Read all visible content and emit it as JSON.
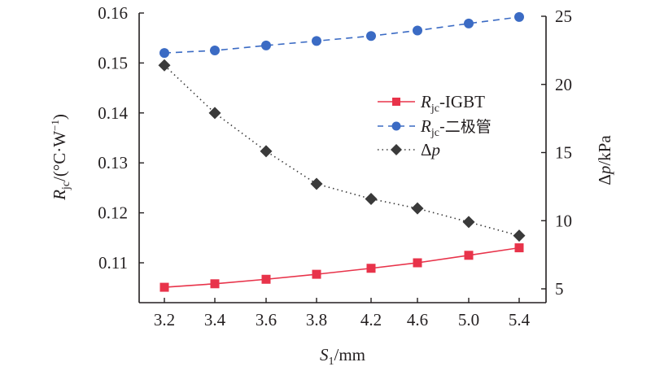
{
  "chart_data": {
    "type": "line",
    "title": "",
    "x_categories": [
      "3.2",
      "3.4",
      "3.6",
      "3.8",
      "4.2",
      "4.6",
      "5.0",
      "5.4"
    ],
    "xlabel": {
      "symbol": "S",
      "subscript": "1",
      "unit": "/mm"
    },
    "ylabel_left": {
      "symbol": "R",
      "subscript": "jc",
      "unit": "/(°C·W",
      "superscript": "−1",
      "close": ")"
    },
    "ylabel_right": {
      "symbol": "Δ",
      "italic": "p",
      "unit": "/kPa"
    },
    "ylim_left": [
      0.1025,
      0.16
    ],
    "ylim_right": [
      4.0,
      25.0
    ],
    "yticks_left": [
      "0.16",
      "0.15",
      "0.14",
      "0.13",
      "0.12",
      "0.11"
    ],
    "yticks_left_values": [
      0.16,
      0.15,
      0.14,
      0.13,
      0.12,
      0.11
    ],
    "yticks_right": [
      "25",
      "20",
      "15",
      "10",
      "5"
    ],
    "yticks_right_values": [
      25,
      20,
      15,
      10,
      5
    ],
    "grid": false,
    "legend_position": "center-right",
    "series": [
      {
        "name": "Rjc-IGBT",
        "legend": {
          "symbol": "R",
          "subscript": "jc",
          "suffix": "-IGBT"
        },
        "axis": "left",
        "color": "#e8334a",
        "line_style": "solid",
        "marker": "square",
        "values": [
          0.1051,
          0.1058,
          0.1067,
          0.1077,
          0.1089,
          0.11,
          0.1115,
          0.113
        ]
      },
      {
        "name": "Rjc-二极管",
        "legend": {
          "symbol": "R",
          "subscript": "jc",
          "suffix": "-二极管"
        },
        "axis": "left",
        "color": "#3b6bc4",
        "line_style": "dashed",
        "marker": "circle",
        "values": [
          0.152,
          0.1525,
          0.1535,
          0.1544,
          0.1554,
          0.1565,
          0.1579,
          0.1592
        ]
      },
      {
        "name": "Δp",
        "legend": {
          "symbol": "Δ",
          "italic": "p",
          "suffix": ""
        },
        "axis": "right",
        "color": "#3a3a3a",
        "line_style": "dotted",
        "marker": "diamond",
        "values": [
          21.4,
          17.9,
          15.1,
          12.7,
          11.6,
          10.9,
          9.9,
          8.9
        ]
      }
    ]
  }
}
